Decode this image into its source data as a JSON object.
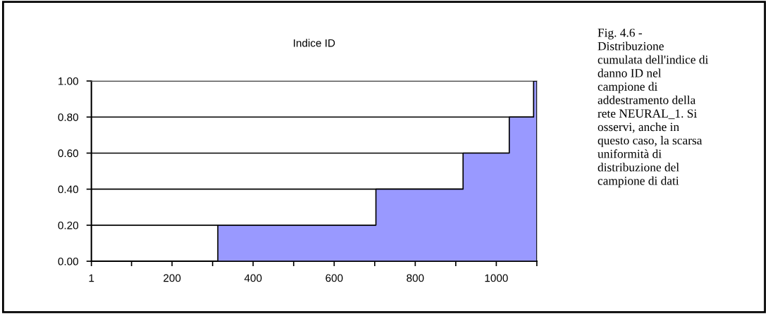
{
  "chart_data": {
    "type": "area",
    "title": "Indice ID",
    "x": [
      1,
      313,
      313,
      703,
      703,
      918,
      918,
      1032,
      1032,
      1092,
      1092,
      1100
    ],
    "values": [
      0.0,
      0.0,
      0.2,
      0.2,
      0.4,
      0.4,
      0.6,
      0.6,
      0.8,
      0.8,
      1.0,
      1.0
    ],
    "color": "#9999ff",
    "xlim": [
      1,
      1100
    ],
    "xticks": [
      1,
      {
        "value": 100,
        "label": null
      },
      200,
      {
        "value": 300,
        "label": null
      },
      400,
      {
        "value": 500,
        "label": null
      },
      600,
      {
        "value": 700,
        "label": null
      },
      800,
      {
        "value": 900,
        "label": null
      },
      1000,
      {
        "value": 1100,
        "label": null
      }
    ],
    "ylim": [
      0,
      1
    ],
    "yticks": [
      {
        "value": 0,
        "label": "0.00"
      },
      {
        "value": 0.2,
        "label": "0.20"
      },
      {
        "value": 0.4,
        "label": "0.40"
      },
      {
        "value": 0.6,
        "label": "0.60"
      },
      {
        "value": 0.8,
        "label": "0.80"
      },
      {
        "value": 1,
        "label": "1.00"
      }
    ],
    "grid": "y",
    "annotations": [
      "Fig. 4.6 -\nDistribuzione\ncumulata dell'indice di\ndanno ID nel\ncampione di\naddestramento della\nrete NEURAL_1. Si\nosservi, anche in\nquesto caso, la scarsa\nuniformità di\ndistribuzione del\ncampione di dati"
    ]
  }
}
